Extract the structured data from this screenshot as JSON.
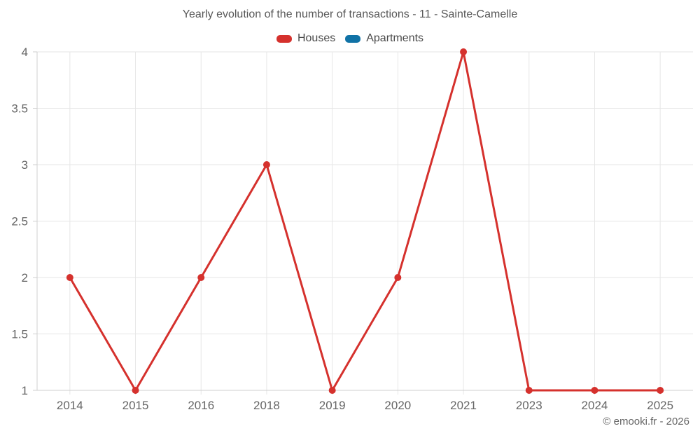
{
  "header": {
    "title": "Yearly evolution of the number of transactions - 11 - Sainte-Camelle"
  },
  "legend": [
    {
      "label": "Houses",
      "color": "#d5312d"
    },
    {
      "label": "Apartments",
      "color": "#1072a6"
    }
  ],
  "footer": {
    "credit": "© emooki.fr - 2026"
  },
  "colors": {
    "grid": "#e6e6e6",
    "axis": "#cfcfcf",
    "tick_text": "#666666",
    "title_text": "#575757"
  },
  "chart_data": {
    "type": "line",
    "title": "Yearly evolution of the number of transactions - 11 - Sainte-Camelle",
    "categories": [
      "2014",
      "2015",
      "2016",
      "2018",
      "2019",
      "2020",
      "2021",
      "2023",
      "2024",
      "2025"
    ],
    "series": [
      {
        "name": "Houses",
        "color": "#d5312d",
        "values": [
          2,
          1,
          2,
          3,
          1,
          2,
          4,
          1,
          1,
          1
        ]
      },
      {
        "name": "Apartments",
        "color": "#1072a6",
        "values": []
      }
    ],
    "xlabel": "",
    "ylabel": "",
    "ylim": [
      1,
      4
    ],
    "yticks": [
      1,
      1.5,
      2,
      2.5,
      3,
      3.5,
      4
    ],
    "grid": true,
    "legend_position": "top",
    "marker": "circle",
    "marker_radius": 5,
    "line_width": 3
  }
}
